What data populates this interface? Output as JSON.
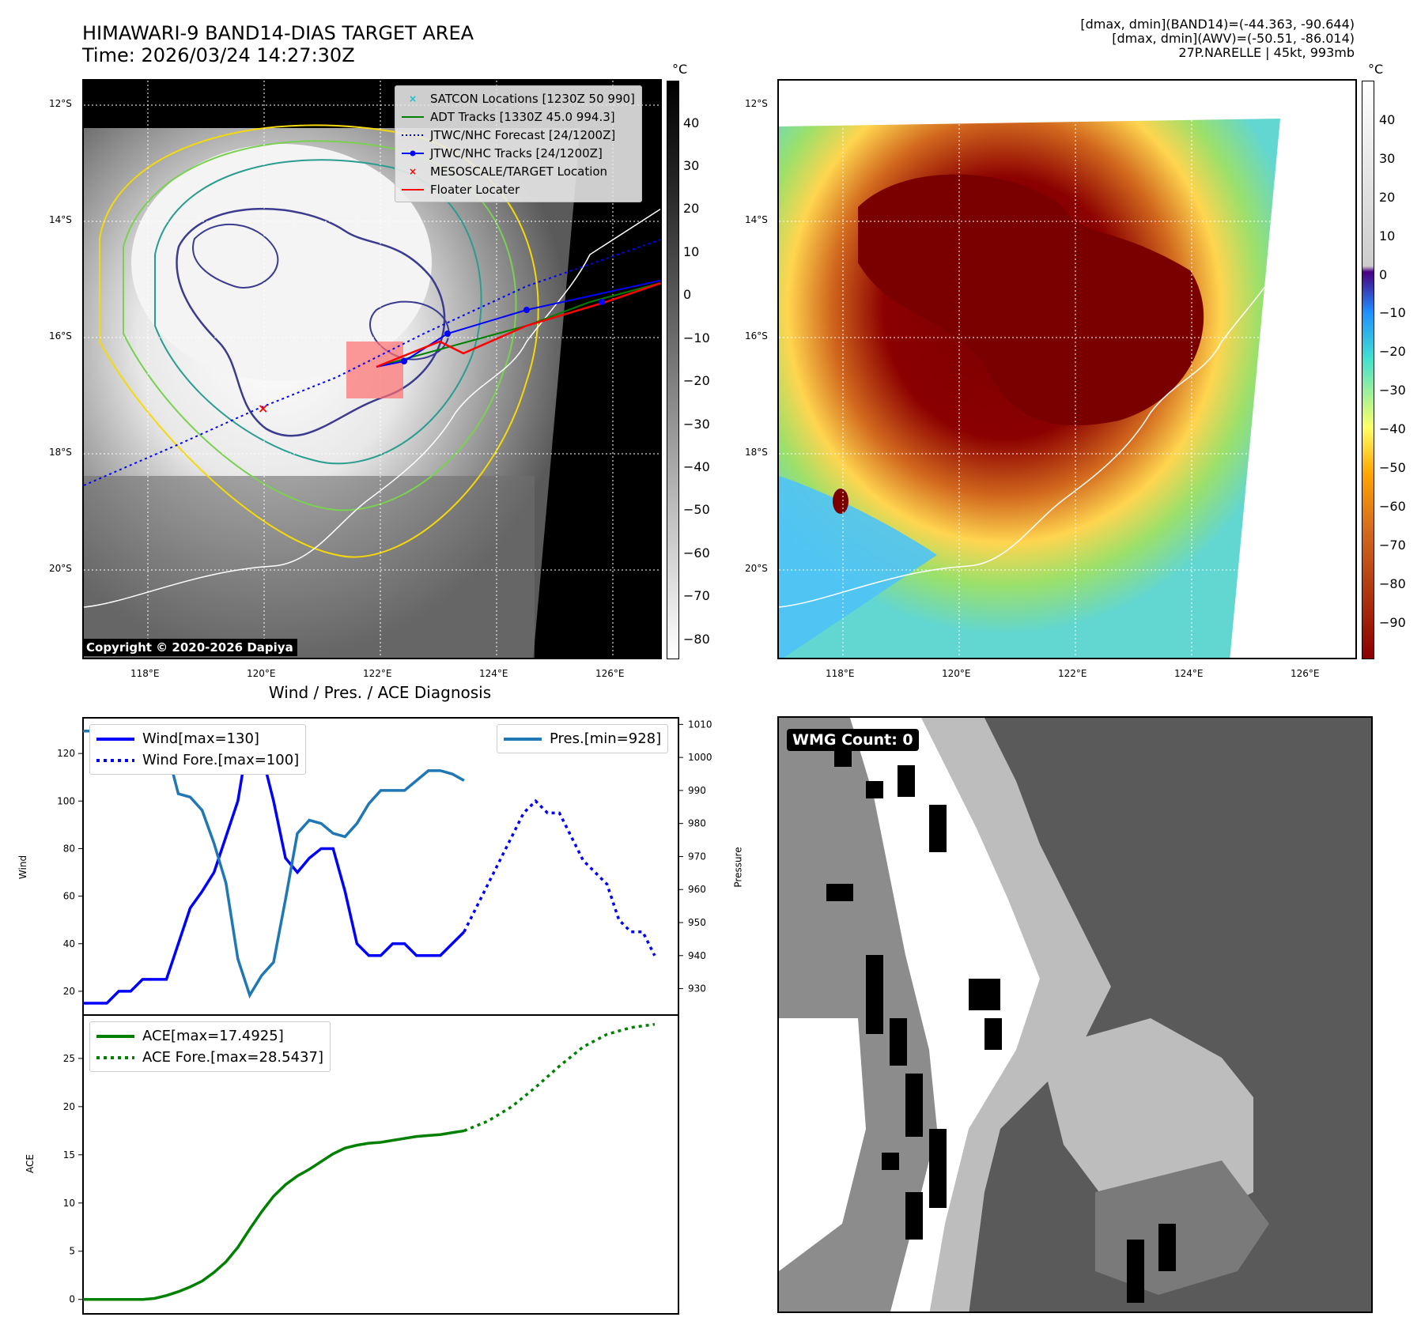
{
  "header": {
    "title": "HIMAWARI-9 BAND14-DIAS TARGET AREA",
    "time": "Time: 2026/03/24 14:27:30Z"
  },
  "info": {
    "line1": "[dmax, dmin](BAND14)=(-44.363, -90.644)",
    "line2": "[dmax, dmin](AWV)=(-50.51, -86.014)",
    "line3": "27P.NARELLE | 45kt, 993mb"
  },
  "map": {
    "lat_labels": [
      "12°S",
      "14°S",
      "16°S",
      "18°S",
      "20°S"
    ],
    "lon_labels": [
      "118°E",
      "120°E",
      "122°E",
      "124°E",
      "126°E"
    ],
    "legend": [
      {
        "label": "SATCON Locations [1230Z 50 990]",
        "color": "#17becf",
        "style": "x"
      },
      {
        "label": "ADT Tracks [1330Z 45.0 994.3]",
        "color": "#008000",
        "style": "solid"
      },
      {
        "label": "JTWC/NHC Forecast [24/1200Z]",
        "color": "#0000ff",
        "style": "dotted"
      },
      {
        "label": "JTWC/NHC Tracks [24/1200Z]",
        "color": "#0000ff",
        "style": "dot-line"
      },
      {
        "label": "MESOSCALE/TARGET Location",
        "color": "#ff0000",
        "style": "x"
      },
      {
        "label": "Floater Locater",
        "color": "#ff0000",
        "style": "solid"
      }
    ],
    "copyright": "Copyright © 2020-2026 Dapiya",
    "colorbar_unit": "°C",
    "colorbar1_ticks": [
      "40",
      "30",
      "20",
      "10",
      "0",
      "−10",
      "−20",
      "−30",
      "−40",
      "−50",
      "−60",
      "−70",
      "−80"
    ],
    "colorbar2_ticks": [
      "40",
      "30",
      "20",
      "10",
      "0",
      "−10",
      "−20",
      "−30",
      "−40",
      "−50",
      "−60",
      "−70",
      "−80",
      "−90"
    ]
  },
  "diag": {
    "title": "Wind / Pres. / ACE Diagnosis",
    "wind_axis_label": "Wind",
    "pressure_axis_label": "Pressure",
    "ace_axis_label": "ACE",
    "wmg_label": "WMG Count: 0"
  },
  "chart_data": [
    {
      "type": "line",
      "title": "Wind / Pres. / ACE Diagnosis",
      "ylabel": "Wind",
      "y2label": "Pressure",
      "ylim": [
        10,
        135
      ],
      "y2lim": [
        922,
        1012
      ],
      "yticks": [
        20,
        40,
        60,
        80,
        100,
        120
      ],
      "y2ticks": [
        930,
        940,
        950,
        960,
        970,
        980,
        990,
        1000,
        1010
      ],
      "xlim": [
        0,
        50
      ],
      "series": [
        {
          "name": "Wind[max=130]",
          "color": "#0000ff",
          "style": "solid",
          "axis": "left",
          "x": [
            0,
            1,
            2,
            3,
            4,
            5,
            6,
            7,
            8,
            9,
            10,
            11,
            12,
            13,
            14,
            15,
            16,
            17,
            18,
            19,
            20,
            21,
            22,
            23,
            24,
            25,
            26,
            27,
            28,
            29,
            30,
            31,
            32
          ],
          "values": [
            15,
            15,
            15,
            20,
            20,
            25,
            25,
            25,
            40,
            55,
            62,
            70,
            85,
            100,
            130,
            120,
            100,
            76,
            70,
            76,
            80,
            80,
            62,
            40,
            35,
            35,
            40,
            40,
            35,
            35,
            35,
            40,
            45
          ]
        },
        {
          "name": "Wind Fore.[max=100]",
          "color": "#0000ff",
          "style": "dotted",
          "axis": "left",
          "x": [
            32,
            33,
            34,
            35,
            36,
            37,
            38,
            39,
            40,
            41,
            42,
            43,
            44,
            45,
            46,
            47,
            48
          ],
          "values": [
            45,
            55,
            65,
            75,
            85,
            95,
            100,
            95,
            95,
            85,
            75,
            70,
            65,
            50,
            45,
            45,
            35
          ]
        },
        {
          "name": "Pres.[min=928]",
          "color": "#1f77b4",
          "style": "solid",
          "axis": "right",
          "x": [
            0,
            1,
            2,
            3,
            4,
            5,
            6,
            7,
            8,
            9,
            10,
            11,
            12,
            13,
            14,
            15,
            16,
            17,
            18,
            19,
            20,
            21,
            22,
            23,
            24,
            25,
            26,
            27,
            28,
            29,
            30,
            31,
            32
          ],
          "values": [
            1008,
            1008,
            1004,
            1005,
            1004,
            1003,
            1003,
            1003,
            989,
            988,
            984,
            974,
            962,
            939,
            928,
            934,
            938,
            957,
            977,
            981,
            980,
            977,
            976,
            980,
            986,
            990,
            990,
            990,
            993,
            996,
            996,
            995,
            993
          ]
        }
      ]
    },
    {
      "type": "line",
      "ylabel": "ACE",
      "ylim": [
        -1.5,
        29.5
      ],
      "yticks": [
        0,
        5,
        10,
        15,
        20,
        25
      ],
      "xlim": [
        0,
        50
      ],
      "series": [
        {
          "name": "ACE[max=17.4925]",
          "color": "#008000",
          "style": "solid",
          "x": [
            0,
            2,
            4,
            5,
            6,
            7,
            8,
            9,
            10,
            11,
            12,
            13,
            14,
            15,
            16,
            17,
            18,
            19,
            20,
            21,
            22,
            23,
            24,
            25,
            26,
            27,
            28,
            29,
            30,
            31,
            32
          ],
          "values": [
            0,
            0,
            0,
            0,
            0.1,
            0.4,
            0.8,
            1.3,
            1.9,
            2.8,
            3.9,
            5.4,
            7.3,
            9.1,
            10.7,
            11.9,
            12.8,
            13.5,
            14.3,
            15.1,
            15.7,
            16,
            16.2,
            16.3,
            16.5,
            16.7,
            16.9,
            17,
            17.1,
            17.3,
            17.49
          ]
        },
        {
          "name": "ACE Fore.[max=28.5437]",
          "color": "#008000",
          "style": "dotted",
          "x": [
            32,
            34,
            36,
            38,
            40,
            42,
            44,
            46,
            48
          ],
          "values": [
            17.49,
            18.5,
            20,
            22,
            24.2,
            26.2,
            27.5,
            28.2,
            28.54
          ]
        }
      ]
    }
  ]
}
